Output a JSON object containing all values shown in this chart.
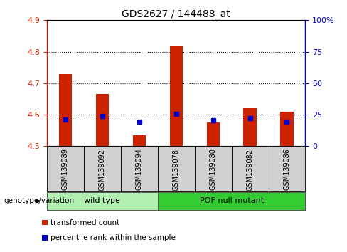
{
  "title": "GDS2627 / 144488_at",
  "samples": [
    "GSM139089",
    "GSM139092",
    "GSM139094",
    "GSM139078",
    "GSM139080",
    "GSM139082",
    "GSM139086"
  ],
  "red_values": [
    4.73,
    4.665,
    4.535,
    4.82,
    4.575,
    4.62,
    4.61
  ],
  "blue_values": [
    4.585,
    4.595,
    4.578,
    4.602,
    4.582,
    4.588,
    4.578
  ],
  "ylim": [
    4.5,
    4.9
  ],
  "yticks": [
    4.5,
    4.6,
    4.7,
    4.8,
    4.9
  ],
  "y2ticks_pct": [
    0,
    25,
    50,
    75,
    100
  ],
  "y2labels": [
    "0",
    "25",
    "50",
    "75",
    "100%"
  ],
  "groups": [
    {
      "label": "wild type",
      "start": 0,
      "end": 3,
      "color": "#b2f0b2"
    },
    {
      "label": "POF null mutant",
      "start": 3,
      "end": 7,
      "color": "#33cc33"
    }
  ],
  "group_label": "genotype/variation",
  "legend": [
    {
      "label": "transformed count",
      "color": "#cc2200"
    },
    {
      "label": "percentile rank within the sample",
      "color": "#0000cc"
    }
  ],
  "bar_width": 0.35,
  "bar_bottom": 4.5,
  "blue_size": 5,
  "bg_color": "#d0d0d0",
  "left_color": "#cc2200",
  "right_color": "#0000cc",
  "ymin": 4.5,
  "ymax": 4.9,
  "pct_min": 0,
  "pct_max": 100
}
